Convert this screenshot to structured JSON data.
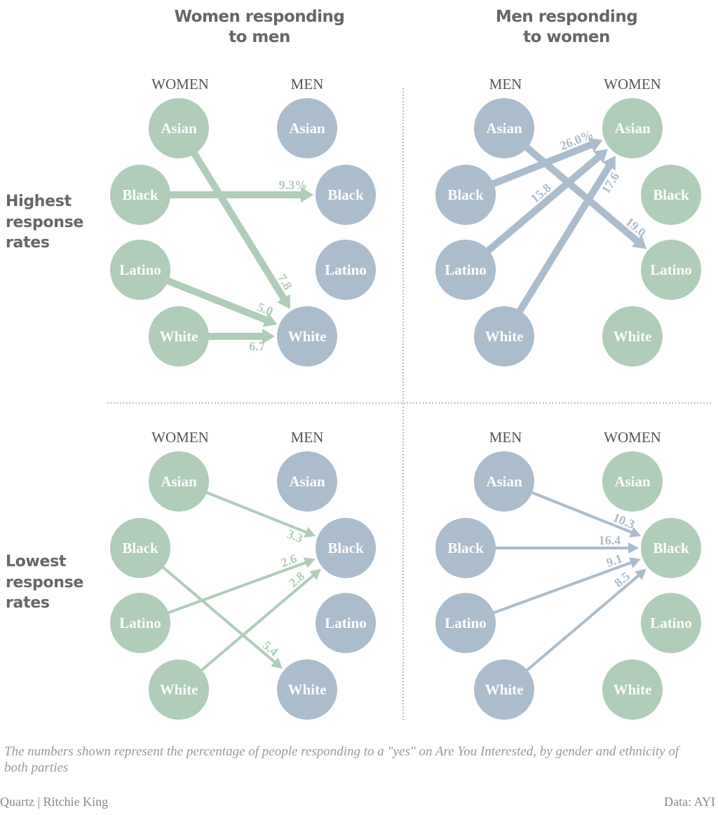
{
  "titles": {
    "left": [
      "Women responding",
      "to men"
    ],
    "right": [
      "Men responding",
      "to women"
    ]
  },
  "row_labels": {
    "top": [
      "Highest",
      "response",
      "rates"
    ],
    "bottom": [
      "Lowest",
      "response",
      "rates"
    ]
  },
  "colors": {
    "women": "#afcdb9",
    "men": "#abbccc",
    "title": "#666666",
    "note": "#999999"
  },
  "ethnicities": [
    "Asian",
    "Black",
    "Latino",
    "White"
  ],
  "panels": [
    {
      "id": "highest-women-to-men",
      "left_header": "WOMEN",
      "right_header": "MEN",
      "left_group": "women",
      "right_group": "men",
      "arrow_color": "women",
      "weight": "thick",
      "edges": [
        {
          "from": "Black",
          "to": "Black",
          "value": "9.3%"
        },
        {
          "from": "Asian",
          "to": "White",
          "value": "7.8"
        },
        {
          "from": "Latino",
          "to": "White",
          "value": "5.0"
        },
        {
          "from": "White",
          "to": "White",
          "value": "6.7"
        }
      ]
    },
    {
      "id": "highest-men-to-women",
      "left_header": "MEN",
      "right_header": "WOMEN",
      "left_group": "men",
      "right_group": "women",
      "arrow_color": "men",
      "weight": "thick",
      "edges": [
        {
          "from": "Black",
          "to": "Asian",
          "value": "26.0%"
        },
        {
          "from": "Latino",
          "to": "Asian",
          "value": "15.8"
        },
        {
          "from": "White",
          "to": "Asian",
          "value": "17.6"
        },
        {
          "from": "Asian",
          "to": "Latino",
          "value": "19.0"
        }
      ]
    },
    {
      "id": "lowest-women-to-men",
      "left_header": "WOMEN",
      "right_header": "MEN",
      "left_group": "women",
      "right_group": "men",
      "arrow_color": "women",
      "weight": "thin",
      "edges": [
        {
          "from": "Asian",
          "to": "Black",
          "value": "3.3"
        },
        {
          "from": "Latino",
          "to": "Black",
          "value": "2.6"
        },
        {
          "from": "White",
          "to": "Black",
          "value": "2.8"
        },
        {
          "from": "Black",
          "to": "White",
          "value": "5.4"
        }
      ]
    },
    {
      "id": "lowest-men-to-women",
      "left_header": "MEN",
      "right_header": "WOMEN",
      "left_group": "men",
      "right_group": "women",
      "arrow_color": "men",
      "weight": "thin",
      "edges": [
        {
          "from": "Asian",
          "to": "Black",
          "value": "10.3"
        },
        {
          "from": "Black",
          "to": "Black",
          "value": "16.4"
        },
        {
          "from": "Latino",
          "to": "Black",
          "value": "9.1"
        },
        {
          "from": "White",
          "to": "Black",
          "value": "8.5"
        }
      ]
    }
  ],
  "note": "The numbers shown represent the percentage of people responding to a \"yes\" on Are You Interested, by gender and ethnicity of both parties",
  "credit": "Quartz | Ritchie King",
  "source": "Data: AYI"
}
